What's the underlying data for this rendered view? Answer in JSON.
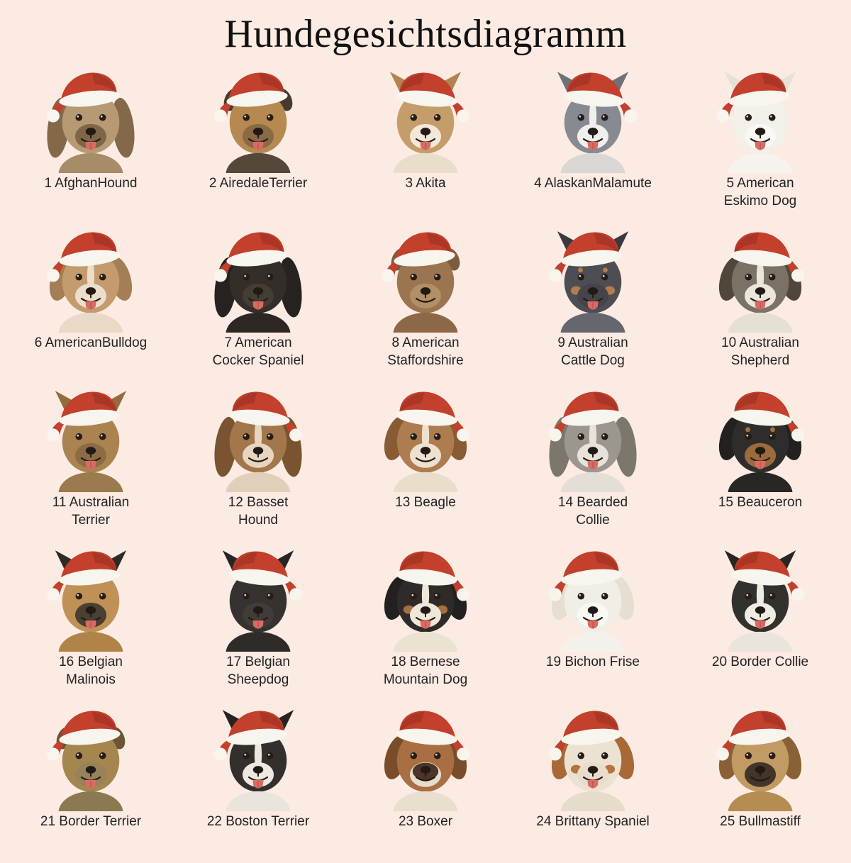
{
  "page": {
    "title": "Hundegesichtsdiagramm",
    "background_color": "#fcebe2",
    "text_color": "#1e1e1e",
    "label_color": "#222222",
    "hat": {
      "red": "#c2402c",
      "red_dark": "#9a2e20",
      "trim": "#f8f4ee",
      "pompom": "#f8f4ee"
    },
    "tongue_color": "#d96b64",
    "eye_color": "#261d15",
    "nose_color": "#211a15"
  },
  "dogs": [
    {
      "number": 1,
      "breed": "Afghan Hound",
      "label_lines": [
        "1 AfghanHound"
      ],
      "ears": "long",
      "hat": "left",
      "tongue": true,
      "colors": {
        "fur": "#b79a74",
        "ear": "#83684a",
        "muzzle": "#7d6747",
        "chest": "#a78c68"
      }
    },
    {
      "number": 2,
      "breed": "Airedale Terrier",
      "label_lines": [
        "2 AiredaleTerrier"
      ],
      "ears": "small",
      "hat": "left",
      "tongue": true,
      "colors": {
        "fur": "#b5894f",
        "ear": "#443a2e",
        "muzzle": "#8a6a45",
        "chest": "#55483a"
      }
    },
    {
      "number": 3,
      "breed": "Akita",
      "label_lines": [
        "3 Akita"
      ],
      "ears": "pointy",
      "hat": "right",
      "tongue": true,
      "colors": {
        "fur": "#c59d6a",
        "ear": "#af8550",
        "muzzle": "#f1e8d8",
        "chest": "#e9decb"
      }
    },
    {
      "number": 4,
      "breed": "Alaskan Malamute",
      "label_lines": [
        "4 AlaskanMalamute"
      ],
      "ears": "pointy",
      "hat": "right",
      "tongue": true,
      "colors": {
        "fur": "#878a90",
        "ear": "#6e7177",
        "muzzle": "#f1efeb",
        "blaze": "#f1efeb",
        "chest": "#d9d7d3"
      }
    },
    {
      "number": 5,
      "breed": "American Eskimo Dog",
      "label_lines": [
        "5 American",
        "Eskimo Dog"
      ],
      "ears": "pointy",
      "hat": "left",
      "tongue": true,
      "colors": {
        "fur": "#f3f0ea",
        "ear": "#e6e1d6",
        "muzzle": "#faf8f4",
        "chest": "#f6f3ee"
      }
    },
    {
      "number": 6,
      "breed": "American Bulldog",
      "label_lines": [
        "6 AmericanBulldog"
      ],
      "ears": "floppy",
      "hat": "left",
      "tongue": true,
      "colors": {
        "fur": "#c39b6e",
        "ear": "#a47e54",
        "muzzle": "#ecdecb",
        "blaze": "#ecdecb",
        "chest": "#e8dac7"
      }
    },
    {
      "number": 7,
      "breed": "American Cocker Spaniel",
      "label_lines": [
        "7 American",
        "Cocker Spaniel"
      ],
      "ears": "long",
      "hat": "left",
      "tongue": true,
      "colors": {
        "fur": "#332e2a",
        "ear": "#262220",
        "muzzle": "#453c34",
        "chest": "#2c2723"
      }
    },
    {
      "number": 8,
      "breed": "American Staffordshire",
      "label_lines": [
        "8 American",
        "Staffordshire"
      ],
      "ears": "small",
      "hat": "left",
      "tongue": false,
      "colors": {
        "fur": "#9b7450",
        "ear": "#7d5c3e",
        "muzzle": "#b29067",
        "chest": "#8c6847"
      }
    },
    {
      "number": 9,
      "breed": "Australian Cattle Dog",
      "label_lines": [
        "9 Australian",
        "Cattle Dog"
      ],
      "ears": "pointy",
      "hat": "left",
      "tongue": true,
      "colors": {
        "fur": "#4d4d54",
        "ear": "#393940",
        "muzzle": "#45444b",
        "brow": "#b27d4c",
        "cheek": "#b27d4c",
        "chest": "#66666e"
      }
    },
    {
      "number": 10,
      "breed": "Australian Shepherd",
      "label_lines": [
        "10 Australian",
        "Shepherd"
      ],
      "ears": "floppy",
      "hat": "right",
      "tongue": true,
      "colors": {
        "fur": "#7b7266",
        "ear": "#51463a",
        "muzzle": "#ebe5da",
        "blaze": "#ebe5da",
        "chest": "#e6e0d4"
      }
    },
    {
      "number": 11,
      "breed": "Australian Terrier",
      "label_lines": [
        "11 Australian",
        "Terrier"
      ],
      "ears": "pointy",
      "hat": "left",
      "tongue": true,
      "colors": {
        "fur": "#aa8351",
        "ear": "#926d3c",
        "muzzle": "#8d6c44",
        "chest": "#9b7a4d"
      }
    },
    {
      "number": 12,
      "breed": "Basset Hound",
      "label_lines": [
        "12 Basset",
        "Hound"
      ],
      "ears": "long",
      "hat": "right",
      "tongue": false,
      "colors": {
        "fur": "#a3764b",
        "ear": "#7a5330",
        "muzzle": "#e6d6c0",
        "blaze": "#e6d6c0",
        "chest": "#e0d0ba"
      }
    },
    {
      "number": 13,
      "breed": "Beagle",
      "label_lines": [
        "13 Beagle"
      ],
      "ears": "floppy",
      "hat": "right",
      "tongue": false,
      "colors": {
        "fur": "#ad7c4f",
        "ear": "#885b34",
        "muzzle": "#ede1d0",
        "blaze": "#ede1d0",
        "chest": "#eaddcc"
      }
    },
    {
      "number": 14,
      "breed": "Bearded Collie",
      "label_lines": [
        "14 Bearded",
        "Collie"
      ],
      "ears": "long",
      "hat": "left",
      "tongue": true,
      "colors": {
        "fur": "#9b968e",
        "ear": "#7c776d",
        "muzzle": "#e7e2da",
        "blaze": "#e7e2da",
        "chest": "#e3ded6"
      }
    },
    {
      "number": 15,
      "breed": "Beauceron",
      "label_lines": [
        "15 Beauceron"
      ],
      "ears": "floppy",
      "hat": "right",
      "tongue": true,
      "colors": {
        "fur": "#2f2d2b",
        "ear": "#232120",
        "muzzle": "#9c6b3d",
        "brow": "#a3703e",
        "chest": "#292725"
      }
    },
    {
      "number": 16,
      "breed": "Belgian Malinois",
      "label_lines": [
        "16 Belgian",
        "Malinois"
      ],
      "ears": "pointy",
      "hat": "left",
      "tongue": true,
      "colors": {
        "fur": "#bf9157",
        "ear": "#2e2a25",
        "muzzle": "#493f32",
        "chest": "#b08449"
      }
    },
    {
      "number": 17,
      "breed": "Belgian Sheepdog",
      "label_lines": [
        "17 Belgian",
        "Sheepdog"
      ],
      "ears": "pointy",
      "hat": "right",
      "tongue": true,
      "colors": {
        "fur": "#353230",
        "ear": "#272524",
        "muzzle": "#403c39",
        "chest": "#2e2b29"
      }
    },
    {
      "number": 18,
      "breed": "Bernese Mountain Dog",
      "label_lines": [
        "18 Bernese",
        "Mountain Dog"
      ],
      "ears": "floppy",
      "hat": "right",
      "tongue": true,
      "colors": {
        "fur": "#2e2b29",
        "ear": "#232020",
        "muzzle": "#eee7da",
        "blaze": "#eee7da",
        "cheek": "#a6713f",
        "chest": "#eae2d3"
      }
    },
    {
      "number": 19,
      "breed": "Bichon Frise",
      "label_lines": [
        "19 Bichon Frise"
      ],
      "ears": "floppy",
      "hat": "left",
      "tongue": true,
      "colors": {
        "fur": "#f1eee6",
        "ear": "#e6dfd1",
        "muzzle": "#faf8f3",
        "chest": "#f4f1ea"
      }
    },
    {
      "number": 20,
      "breed": "Border Collie",
      "label_lines": [
        "20 Border Collie"
      ],
      "ears": "pointy",
      "hat": "right",
      "tongue": true,
      "colors": {
        "fur": "#33302d",
        "ear": "#282522",
        "muzzle": "#efece4",
        "blaze": "#efece4",
        "chest": "#e9e5dd"
      }
    },
    {
      "number": 21,
      "breed": "Border Terrier",
      "label_lines": [
        "21 Border Terrier"
      ],
      "ears": "small",
      "hat": "left",
      "tongue": true,
      "colors": {
        "fur": "#a6864f",
        "ear": "#6b5535",
        "muzzle": "#97825a",
        "chest": "#8d7950"
      }
    },
    {
      "number": 22,
      "breed": "Boston Terrier",
      "label_lines": [
        "22 Boston Terrier"
      ],
      "ears": "pointy",
      "hat": "left",
      "tongue": true,
      "colors": {
        "fur": "#322f2d",
        "ear": "#262321",
        "muzzle": "#ede8e0",
        "blaze": "#ede8e0",
        "chest": "#e9e4dc"
      }
    },
    {
      "number": 23,
      "breed": "Boxer",
      "label_lines": [
        "23 Boxer"
      ],
      "ears": "floppy",
      "hat": "right",
      "tongue": false,
      "colors": {
        "fur": "#a96f42",
        "ear": "#7a4d2a",
        "muzzle": "#e8ddcd",
        "mask": "#4b3627",
        "chest": "#e9dfcf"
      }
    },
    {
      "number": 24,
      "breed": "Brittany Spaniel",
      "label_lines": [
        "24 Brittany Spaniel"
      ],
      "ears": "floppy",
      "hat": "left",
      "tongue": true,
      "colors": {
        "fur": "#ebe2d2",
        "ear": "#a86937",
        "muzzle": "#e8dccb",
        "cheek": "#b5743e",
        "chest": "#e6dccb"
      }
    },
    {
      "number": 25,
      "breed": "Bullmastiff",
      "label_lines": [
        "25 Bullmastiff"
      ],
      "ears": "floppy",
      "hat": "left",
      "tongue": false,
      "colors": {
        "fur": "#c29a63",
        "ear": "#8a6136",
        "muzzle": "#43352a",
        "chest": "#b58c52"
      }
    }
  ]
}
